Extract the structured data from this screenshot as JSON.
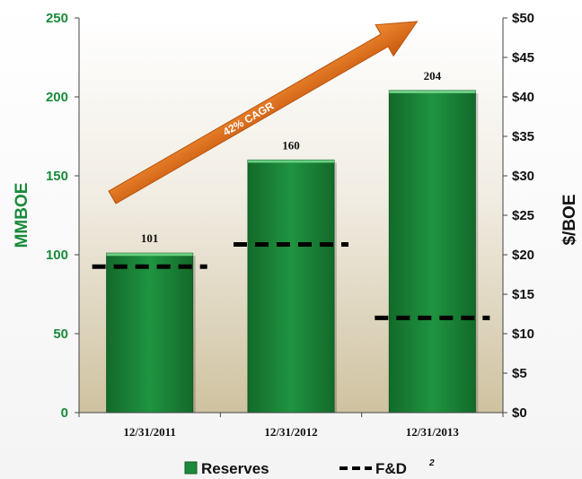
{
  "chart_data": {
    "type": "bar",
    "categories": [
      "12/31/2011",
      "12/31/2012",
      "12/31/2013"
    ],
    "series": [
      {
        "name": "Reserves",
        "values": [
          101,
          160,
          204
        ],
        "axis": "left",
        "color": "#1e8a3c",
        "data_labels": [
          "101",
          "160",
          "204"
        ]
      },
      {
        "name": "F&D",
        "name_superscript": "2",
        "values": [
          18.5,
          21.3,
          12
        ],
        "axis": "right",
        "style": "dashed-line",
        "color": "#000000"
      }
    ],
    "ylabel": "MMBOE",
    "ylim": [
      0,
      250
    ],
    "y_ticks": [
      "0",
      "50",
      "100",
      "150",
      "200",
      "250"
    ],
    "y2label": "$/BOE",
    "y2lim": [
      0,
      50
    ],
    "y2_ticks": [
      "$0",
      "$5",
      "$10",
      "$15",
      "$20",
      "$25",
      "$30",
      "$35",
      "$40",
      "$45",
      "$50"
    ],
    "annotation": {
      "text": "42% CAGR",
      "style": "orange-arrow",
      "color": "#e8711c"
    },
    "legend_position": "bottom-center",
    "plot_background": "gradient-white-to-tan",
    "grid": false
  }
}
